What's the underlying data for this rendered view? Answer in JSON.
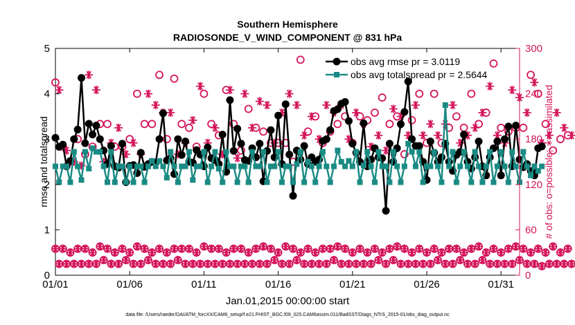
{
  "chart_data": {
    "type": "line",
    "title": "Southern Hemisphere",
    "subtitle": "RADIOSONDE_V_WIND_COMPONENT @ 831 hPa",
    "xlabel": "Jan.01,2015 00:00:00 start",
    "ylabel": "rmse and totalspread",
    "ylabel_right": "# of obs: o=possible; ∗=assimilated",
    "footer": "data file: /Users/raeder/DAI/ATM_forcXX/CAM6_setup/f.e21.FHIST_BGC.f09_025.CAM6assim.011/BadSST/Diags_NTrS_2015-01/obs_diag_output.nc",
    "xlim": [
      1,
      32.25
    ],
    "ylim": [
      0,
      5
    ],
    "ylim_right": [
      0,
      300
    ],
    "xticks": [
      1,
      6,
      11,
      16,
      21,
      26,
      31
    ],
    "xtick_labels": [
      "01/01",
      "01/06",
      "01/11",
      "01/16",
      "01/21",
      "01/26",
      "01/31"
    ],
    "yticks": [
      0,
      1,
      2,
      3,
      4,
      5
    ],
    "ytick_labels": [
      "0",
      "1",
      "2",
      "3",
      "4",
      "5"
    ],
    "yticks_right": [
      0,
      60,
      120,
      180,
      240,
      300
    ],
    "ytick_labels_right": [
      "0",
      "60",
      "120",
      "180",
      "240",
      "300"
    ],
    "legend_position": "top-right",
    "series": [
      {
        "name": "obs avg rmse pr = 3.0119",
        "color": "#000000",
        "marker": "circle",
        "values": [
          3.03,
          2.83,
          2.88,
          2.4,
          2.52,
          3.0,
          3.21,
          4.35,
          2.91,
          3.34,
          3.1,
          3.3,
          3.0,
          2.75,
          2.45,
          2.85,
          2.4,
          2.37,
          2.9,
          2.05,
          2.41,
          2.43,
          2.25,
          2.7,
          2.39,
          2.45,
          2.5,
          2.48,
          3.0,
          3.57,
          2.53,
          2.58,
          2.23,
          3.0,
          2.65,
          2.95,
          2.5,
          2.48,
          2.76,
          2.66,
          2.4,
          2.82,
          2.58,
          2.54,
          2.45,
          3.1,
          2.28,
          3.86,
          2.74,
          3.23,
          2.9,
          2.54,
          2.52,
          2.8,
          2.6,
          2.9,
          2.07,
          2.74,
          3.2,
          2.6,
          3.52,
          2.45,
          3.77,
          2.66,
          1.75,
          2.75,
          2.55,
          2.85,
          2.45,
          2.6,
          2.5,
          2.55,
          2.96,
          3.0,
          3.2,
          3.62,
          3.66,
          3.78,
          3.82,
          3.4,
          2.9,
          2.7,
          2.5,
          3.35,
          2.4,
          2.55,
          2.8,
          2.6,
          2.58,
          1.42,
          2.9,
          2.5,
          2.8,
          3.33,
          3.6,
          4.27,
          3.0,
          2.85,
          2.85,
          2.5,
          2.1,
          2.95,
          2.7,
          2.5,
          2.6,
          2.9,
          2.5,
          2.3,
          2.65,
          2.72,
          3.1,
          2.5,
          2.35,
          2.6,
          2.95,
          2.4,
          2.2,
          2.6,
          2.8,
          2.95,
          2.2,
          3.0,
          3.28,
          2.4,
          3.3,
          2.55,
          2.38,
          2.45,
          2.3,
          2.2,
          2.8,
          2.84
        ],
        "legend_label": "obs avg rmse pr = 3.0119"
      },
      {
        "name": "obs avg totalspread pr = 2.5644",
        "color": "#1a8b84",
        "marker": "square",
        "values": [
          2.4,
          2.05,
          2.4,
          2.4,
          2.05,
          2.72,
          2.4,
          2.1,
          2.72,
          2.35,
          2.8,
          2.72,
          2.72,
          2.4,
          2.05,
          2.72,
          2.05,
          2.4,
          2.4,
          2.05,
          2.4,
          2.05,
          2.4,
          2.4,
          2.05,
          2.4,
          2.52,
          2.4,
          2.52,
          2.4,
          2.15,
          2.72,
          2.4,
          2.05,
          2.4,
          2.4,
          2.72,
          2.1,
          2.4,
          2.4,
          2.72,
          2.05,
          2.4,
          2.72,
          2.35,
          2.05,
          2.72,
          2.4,
          2.4,
          2.05,
          2.4,
          2.4,
          2.05,
          2.72,
          2.4,
          2.4,
          2.72,
          2.05,
          2.4,
          2.4,
          2.72,
          2.05,
          2.4,
          2.4,
          2.05,
          2.45,
          2.72,
          2.05,
          2.5,
          2.4,
          2.05,
          2.4,
          2.72,
          2.4,
          2.05,
          2.4,
          2.75,
          2.5,
          2.4,
          2.52,
          2.4,
          2.72,
          2.05,
          2.42,
          2.72,
          2.4,
          2.05,
          2.72,
          2.4,
          2.4,
          2.05,
          2.72,
          2.4,
          2.05,
          2.4,
          2.9,
          2.72,
          2.4,
          2.72,
          2.05,
          2.4,
          2.4,
          2.72,
          2.4,
          2.05,
          3.75,
          2.4,
          2.72,
          2.05,
          2.4,
          2.72,
          2.4,
          2.05,
          2.72,
          2.4,
          2.05,
          2.4,
          2.72,
          2.05,
          2.4,
          2.72,
          2.4,
          2.05,
          2.72,
          2.4,
          2.05,
          2.72,
          2.4,
          2.2,
          2.4,
          2.3,
          2.4
        ],
        "legend_label": "obs avg totalspread pr = 2.5644"
      }
    ],
    "obs_possible": {
      "name": "possible",
      "color": "#d4145a",
      "marker": "circle-open",
      "values": [
        255,
        200,
        170,
        265,
        150,
        260,
        180,
        275,
        160,
        265,
        170,
        260,
        200,
        275,
        200,
        255,
        170,
        230,
        170,
        265,
        180,
        200,
        240,
        175,
        200,
        255,
        200,
        240,
        265,
        265,
        180,
        240,
        260,
        195,
        200,
        265,
        195,
        220,
        170,
        190,
        240,
        280,
        200,
        275,
        185,
        205,
        245,
        250,
        200,
        270,
        165,
        285,
        220,
        240,
        195,
        245,
        190,
        190,
        175,
        245,
        175,
        260,
        175,
        265,
        150,
        220,
        285,
        270,
        190,
        265,
        210,
        280,
        175,
        265,
        190,
        240,
        200,
        285,
        210,
        240,
        175,
        220,
        210,
        200,
        205,
        255,
        215,
        255,
        235,
        245,
        200,
        215,
        210,
        255,
        160,
        170,
        205,
        200,
        240,
        230,
        175,
        185,
        240,
        205,
        175,
        260,
        195,
        250,
        210,
        240,
        195,
        215,
        240,
        265,
        200,
        180,
        215,
        205,
        280,
        205,
        195,
        280,
        190,
        250,
        195,
        235,
        195,
        250,
        265,
        165,
        240,
        225,
        200,
        190,
        165,
        170,
        180,
        175,
        185,
        200
      ]
    },
    "obs_assimilated": {
      "name": "assimilated",
      "color": "#d4145a",
      "marker": "star",
      "values": [
        240,
        245,
        185,
        165,
        250,
        150,
        160,
        145,
        170,
        265,
        180,
        245,
        275,
        150,
        175,
        175,
        210,
        195,
        180,
        160,
        225,
        175,
        255,
        160,
        210,
        240,
        185,
        225,
        175,
        215,
        175,
        215,
        235,
        160,
        205,
        175,
        250,
        205,
        195,
        250,
        175,
        175,
        235,
        195,
        210,
        160,
        175,
        245,
        185,
        155,
        265,
        240,
        185,
        195,
        180,
        230,
        200,
        225,
        180,
        175,
        210,
        215,
        175,
        240,
        190,
        225,
        175,
        185,
        240,
        210,
        200,
        180,
        180,
        225,
        190,
        215,
        170,
        225,
        250,
        180,
        195,
        215,
        190,
        200,
        230,
        170,
        250,
        185,
        235,
        165,
        175,
        220,
        195,
        210,
        205,
        185,
        175,
        225,
        185,
        185,
        250,
        200,
        175,
        185,
        230,
        200,
        195,
        225,
        185,
        175,
        235,
        185,
        245,
        195,
        170,
        215,
        180,
        250,
        200,
        185,
        185,
        175,
        200,
        245,
        255,
        235,
        200,
        215,
        165,
        255,
        185,
        175,
        185,
        185,
        180,
        215,
        190,
        195,
        185,
        185
      ]
    },
    "obs_possible_low": [
      35,
      15,
      35,
      15,
      30,
      15,
      35,
      15,
      35,
      15,
      30,
      15,
      38,
      20,
      35,
      15,
      30,
      15,
      35,
      20,
      30,
      15,
      38,
      15,
      35,
      20,
      30,
      15,
      35,
      15,
      30,
      15,
      35,
      20,
      35,
      15,
      35,
      15,
      30,
      15,
      38,
      15,
      35,
      15,
      35,
      15,
      30,
      15,
      35,
      15,
      35,
      15,
      30,
      15,
      35,
      15,
      38,
      15,
      35,
      20,
      30,
      15,
      38,
      15,
      35,
      20,
      30,
      15,
      35,
      15,
      30,
      15,
      35,
      15,
      35,
      20,
      38,
      15,
      35,
      15,
      30,
      15,
      35,
      15,
      30,
      15,
      35,
      20,
      30,
      15,
      35,
      20,
      38,
      15,
      35,
      15,
      30,
      15,
      35,
      15,
      30,
      15,
      35,
      20,
      30,
      15,
      35,
      15,
      35,
      20,
      30,
      15,
      35,
      15,
      38,
      20,
      30,
      15,
      35,
      15,
      30,
      15,
      35,
      15,
      38,
      20,
      35,
      15,
      30,
      15,
      35,
      12,
      30,
      15,
      38,
      15,
      30,
      15,
      35,
      15
    ],
    "obs_assimilated_low": [
      35,
      15,
      35,
      15,
      30,
      15,
      35,
      15,
      35,
      15,
      30,
      15,
      38,
      20,
      35,
      15,
      30,
      15,
      35,
      20,
      30,
      15,
      38,
      15,
      35,
      20,
      30,
      15,
      35,
      15,
      30,
      15,
      35,
      20,
      35,
      15,
      35,
      15,
      30,
      15,
      38,
      15,
      35,
      15,
      35,
      15,
      30,
      15,
      35,
      15,
      35,
      15,
      30,
      15,
      35,
      15,
      38,
      15,
      35,
      20,
      30,
      15,
      38,
      15,
      35,
      20,
      30,
      15,
      35,
      15,
      30,
      15,
      35,
      15,
      35,
      20,
      38,
      15,
      35,
      15,
      30,
      15,
      35,
      15,
      30,
      15,
      35,
      20,
      30,
      15,
      35,
      20,
      38,
      15,
      35,
      15,
      30,
      15,
      35,
      15,
      30,
      15,
      35,
      20,
      30,
      15,
      35,
      15,
      35,
      20,
      30,
      15,
      35,
      15,
      38,
      20,
      30,
      15,
      35,
      15,
      30,
      15,
      35,
      15,
      38,
      20,
      35,
      15,
      30,
      15,
      35,
      12,
      30,
      15,
      38,
      15,
      30,
      15,
      35,
      15
    ]
  }
}
